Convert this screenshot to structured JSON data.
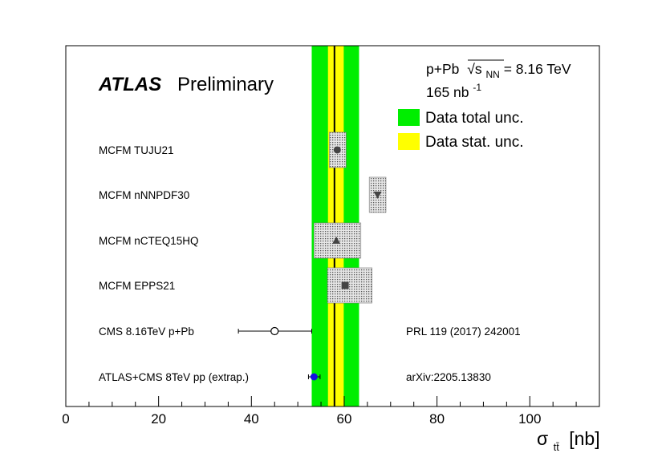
{
  "colors": {
    "total_band": "#00ee00",
    "stat_band": "#ffff00",
    "pred_box_fill": "#d8d8d8",
    "pred_marker": "#444444",
    "atlas_cms_marker": "#1010e0"
  },
  "chart_data": {
    "type": "scatter",
    "title": "",
    "xlabel_symbol": "σ",
    "xlabel_subscript": "tt̄",
    "xlabel_unit": "[nb]",
    "xlim": [
      0,
      115
    ],
    "xticks": [
      0,
      20,
      40,
      60,
      80,
      100
    ],
    "brand": "ATLAS",
    "status": "Preliminary",
    "info": {
      "system": "p+Pb",
      "energy_symbol": "√s",
      "energy_subscript": "NN",
      "energy_value": " = 8.16 TeV",
      "lumi_value": "165 nb",
      "lumi_exponent": "-1"
    },
    "measurement": {
      "central": 57.9,
      "stat_low": 56.5,
      "stat_high": 59.9,
      "total_low": 53.0,
      "total_high": 63.2
    },
    "legend": [
      {
        "name": "Data total unc.",
        "color": "#00ee00"
      },
      {
        "name": "Data stat. unc.",
        "color": "#ffff00"
      }
    ],
    "points": [
      {
        "label": "MCFM TUJU21",
        "value": 58.5,
        "band": [
          56.8,
          60.4
        ],
        "marker": "circle",
        "kind": "prediction"
      },
      {
        "label": "MCFM nNNPDF30",
        "value": 67.2,
        "band": [
          65.4,
          69.0
        ],
        "marker": "triangle-down",
        "kind": "prediction"
      },
      {
        "label": "MCFM nCTEQ15HQ",
        "value": 58.3,
        "band": [
          53.5,
          63.6
        ],
        "marker": "triangle-up",
        "kind": "prediction"
      },
      {
        "label": "MCFM EPPS21",
        "value": 60.2,
        "band": [
          56.4,
          66.0
        ],
        "marker": "square",
        "kind": "prediction"
      },
      {
        "label": "CMS 8.16TeV p+Pb",
        "value": 45.0,
        "err": [
          37.2,
          53.0
        ],
        "marker": "open-circle",
        "kind": "measurement",
        "reference": "PRL 119 (2017) 242001"
      },
      {
        "label": "ATLAS+CMS 8TeV pp (extrap.)",
        "value": 53.5,
        "err": [
          52.3,
          54.8
        ],
        "marker": "filled-circle",
        "kind": "measurement",
        "reference": "arXiv:2205.13830"
      }
    ]
  }
}
